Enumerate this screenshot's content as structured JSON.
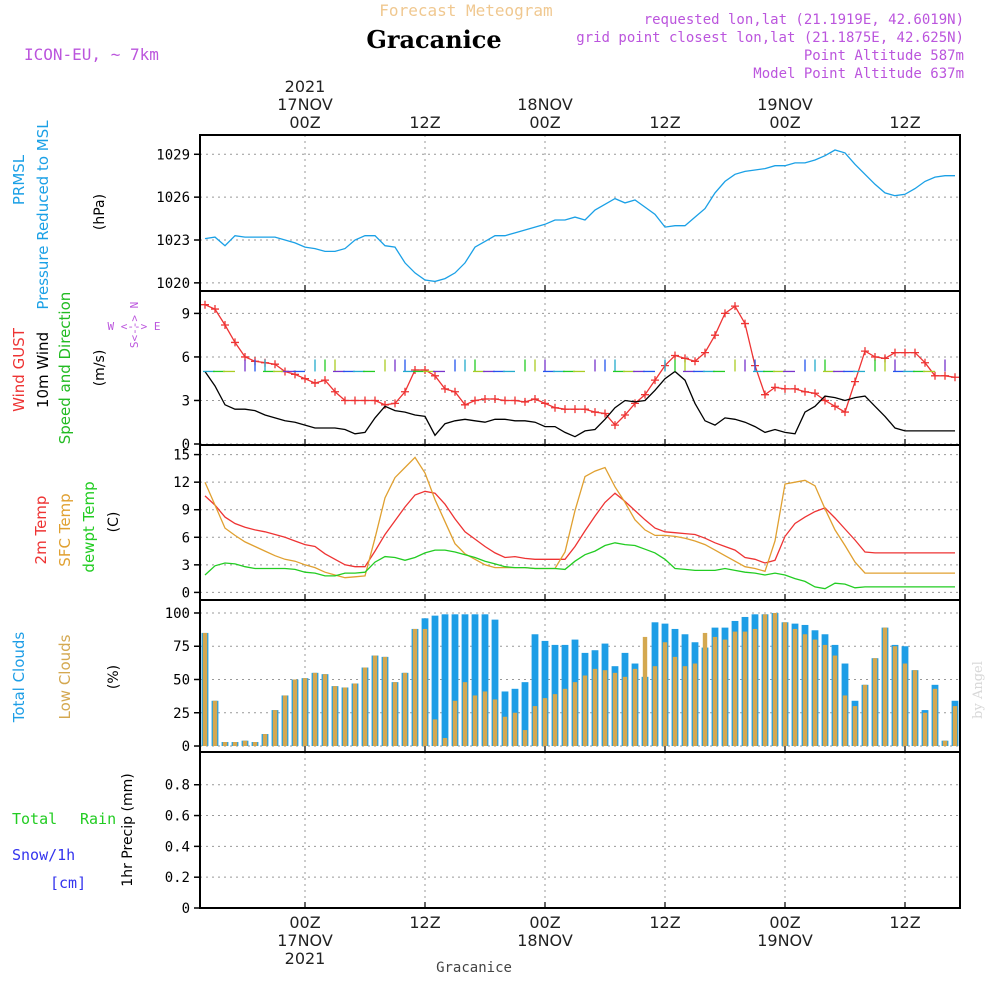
{
  "header": {
    "product": "Forecast Meteogram",
    "location": "Gracanice",
    "model": "ICON-EU, ~ 7km",
    "requested": "requested lon,lat (21.1919E, 42.6019N)",
    "gridpoint": "grid point closest lon,lat (21.1875E, 42.625N)",
    "point_alt": "Point Altitude 587m",
    "model_alt": "Model Point Altitude 637m",
    "credit": "by Angel",
    "footer_location": "Gracanice"
  },
  "colors": {
    "pressure": "#1aa0e6",
    "gust": "#ee3333",
    "wind": "#000000",
    "dir": "#22bb22",
    "temp": "#ee3333",
    "sfc": "#e0a030",
    "dew": "#22cc22",
    "total_cloud": "#1e9ee6",
    "low_cloud": "#d4a850",
    "rain": "#22cc22",
    "snow": "#3333ee",
    "purple": "#bb55dd",
    "header_gold": "#f0c890"
  },
  "time_axis": {
    "top_labels": [
      {
        "hour": 0,
        "lines": [
          "2021",
          "17NOV",
          "00Z"
        ]
      },
      {
        "hour": 12,
        "lines": [
          "12Z"
        ]
      },
      {
        "hour": 24,
        "lines": [
          "18NOV",
          "00Z"
        ]
      },
      {
        "hour": 36,
        "lines": [
          "12Z"
        ]
      },
      {
        "hour": 48,
        "lines": [
          "19NOV",
          "00Z"
        ]
      },
      {
        "hour": 60,
        "lines": [
          "12Z"
        ]
      }
    ],
    "bottom_labels": [
      {
        "hour": 0,
        "lines": [
          "00Z",
          "17NOV",
          "2021"
        ]
      },
      {
        "hour": 12,
        "lines": [
          "12Z"
        ]
      },
      {
        "hour": 24,
        "lines": [
          "00Z",
          "18NOV"
        ]
      },
      {
        "hour": 36,
        "lines": [
          "12Z"
        ]
      },
      {
        "hour": 48,
        "lines": [
          "00Z",
          "19NOV"
        ]
      },
      {
        "hour": 60,
        "lines": [
          "12Z"
        ]
      }
    ]
  },
  "panels": {
    "pressure": {
      "label1": "PRMSL",
      "label2": "Pressure Reduced to MSL",
      "unit": "(hPa)"
    },
    "wind": {
      "label_gust": "Wind GUST",
      "label_wind": "10m Wind",
      "label_dir": "Speed and Direction",
      "unit": "(m/s)",
      "compass_ns": "S<--> N",
      "compass_we": "W <--> E"
    },
    "temp": {
      "label_t": "2m Temp",
      "label_sfc": "SFC Temp",
      "label_dew": "dewpt Temp",
      "unit": "(C)"
    },
    "clouds": {
      "label_total": "Total Clouds",
      "label_low": "Low Clouds",
      "unit": "(%)"
    },
    "precip": {
      "label_rain_a": "Total",
      "label_rain_b": "Rain",
      "label_snow": "Snow/1h",
      "label_snow_unit": "[cm]",
      "unit": "1hr Precip (mm)"
    }
  },
  "chart_data": [
    {
      "type": "line",
      "title": "PRMSL Pressure Reduced to MSL",
      "ylabel": "(hPa)",
      "ylim": [
        1019.5,
        1030.0
      ],
      "yticks": [
        1020,
        1023,
        1026,
        1029
      ],
      "x_hours": [
        -10,
        -9,
        -8,
        -7,
        -6,
        -5,
        -4,
        -3,
        -2,
        -1,
        0,
        1,
        2,
        3,
        4,
        5,
        6,
        7,
        8,
        9,
        10,
        11,
        12,
        13,
        14,
        15,
        16,
        17,
        18,
        19,
        20,
        21,
        22,
        23,
        24,
        25,
        26,
        27,
        28,
        29,
        30,
        31,
        32,
        33,
        34,
        35,
        36,
        37,
        38,
        39,
        40,
        41,
        42,
        43,
        44,
        45,
        46,
        47,
        48,
        49,
        50,
        51,
        52,
        53,
        54,
        55,
        56,
        57,
        58,
        59,
        60,
        61,
        62,
        63,
        64,
        65
      ],
      "series": [
        {
          "name": "PRMSL",
          "values": [
            1023.1,
            1023.2,
            1022.6,
            1023.3,
            1023.2,
            1023.2,
            1023.2,
            1023.2,
            1023.0,
            1022.8,
            1022.5,
            1022.4,
            1022.2,
            1022.2,
            1022.4,
            1023.0,
            1023.3,
            1023.3,
            1022.6,
            1022.5,
            1021.4,
            1020.7,
            1020.2,
            1020.1,
            1020.3,
            1020.7,
            1021.4,
            1022.5,
            1022.9,
            1023.3,
            1023.3,
            1023.5,
            1023.7,
            1023.9,
            1024.1,
            1024.4,
            1024.4,
            1024.6,
            1024.4,
            1025.1,
            1025.5,
            1025.9,
            1025.6,
            1025.8,
            1025.3,
            1024.8,
            1023.9,
            1024.0,
            1024.0,
            1024.6,
            1025.2,
            1026.3,
            1027.1,
            1027.6,
            1027.8,
            1027.9,
            1028.0,
            1028.2,
            1028.2,
            1028.4,
            1028.4,
            1028.6,
            1028.9,
            1029.3,
            1029.1,
            1028.3,
            1027.6,
            1026.9,
            1026.3,
            1026.1,
            1026.2,
            1026.6,
            1027.1,
            1027.4,
            1027.5,
            1027.5
          ]
        }
      ]
    },
    {
      "type": "line",
      "title": "Wind GUST / 10m Wind Speed and Direction",
      "ylabel": "(m/s)",
      "ylim": [
        0,
        10.2
      ],
      "yticks": [
        0,
        3,
        6,
        9
      ],
      "x_hours": [
        -10,
        -9,
        -8,
        -7,
        -6,
        -5,
        -4,
        -3,
        -2,
        -1,
        0,
        1,
        2,
        3,
        4,
        5,
        6,
        7,
        8,
        9,
        10,
        11,
        12,
        13,
        14,
        15,
        16,
        17,
        18,
        19,
        20,
        21,
        22,
        23,
        24,
        25,
        26,
        27,
        28,
        29,
        30,
        31,
        32,
        33,
        34,
        35,
        36,
        37,
        38,
        39,
        40,
        41,
        42,
        43,
        44,
        45,
        46,
        47,
        48,
        49,
        50,
        51,
        52,
        53,
        54,
        55,
        56,
        57,
        58,
        59,
        60,
        61,
        62,
        63,
        64,
        65
      ],
      "series": [
        {
          "name": "Wind GUST",
          "values": [
            9.6,
            9.3,
            8.2,
            7.0,
            6.0,
            5.7,
            5.6,
            5.5,
            5.0,
            4.8,
            4.5,
            4.2,
            4.4,
            3.6,
            3.0,
            3.0,
            3.0,
            3.0,
            2.7,
            2.8,
            3.6,
            5.1,
            5.1,
            4.7,
            3.8,
            3.6,
            2.7,
            3.0,
            3.1,
            3.1,
            3.0,
            3.0,
            2.9,
            3.1,
            2.8,
            2.5,
            2.4,
            2.4,
            2.4,
            2.2,
            2.1,
            1.3,
            2.0,
            2.8,
            3.4,
            4.4,
            5.4,
            6.1,
            5.9,
            5.7,
            6.3,
            7.5,
            9.0,
            9.5,
            8.3,
            5.4,
            3.4,
            3.9,
            3.8,
            3.8,
            3.6,
            3.5,
            3.0,
            2.6,
            2.2,
            4.3,
            6.4,
            6.0,
            5.9,
            6.3,
            6.3,
            6.3,
            5.6,
            4.7,
            4.7,
            4.6
          ]
        },
        {
          "name": "10m Wind",
          "values": [
            5.0,
            4.0,
            2.7,
            2.4,
            2.4,
            2.3,
            2.0,
            1.8,
            1.6,
            1.5,
            1.3,
            1.1,
            1.1,
            1.1,
            1.0,
            0.7,
            0.8,
            1.8,
            2.6,
            2.3,
            2.2,
            2.0,
            1.9,
            0.6,
            1.4,
            1.6,
            1.7,
            1.6,
            1.5,
            1.7,
            1.7,
            1.6,
            1.6,
            1.5,
            1.2,
            1.2,
            0.8,
            0.5,
            0.9,
            1.0,
            1.7,
            2.5,
            3.0,
            2.9,
            3.0,
            3.7,
            4.5,
            5.0,
            4.4,
            2.8,
            1.6,
            1.3,
            1.8,
            1.7,
            1.5,
            1.2,
            0.8,
            1.0,
            0.8,
            0.7,
            2.2,
            2.6,
            3.3,
            3.2,
            3.0,
            3.2,
            3.3,
            2.6,
            1.9,
            1.1,
            0.9,
            0.9,
            0.9,
            0.9,
            0.9,
            0.9
          ]
        }
      ],
      "direction_arrows_start_hour": -9,
      "direction_arrows_end_hour": 64
    },
    {
      "type": "line",
      "title": "2m Temp / SFC Temp / dewpt Temp",
      "ylabel": "(C)",
      "ylim": [
        -0.5,
        15.5
      ],
      "yticks": [
        0,
        3,
        6,
        9,
        12,
        15
      ],
      "x_hours": [
        -10,
        -9,
        -8,
        -7,
        -6,
        -5,
        -4,
        -3,
        -2,
        -1,
        0,
        1,
        2,
        3,
        4,
        5,
        6,
        7,
        8,
        9,
        10,
        11,
        12,
        13,
        14,
        15,
        16,
        17,
        18,
        19,
        20,
        21,
        22,
        23,
        24,
        25,
        26,
        27,
        28,
        29,
        30,
        31,
        32,
        33,
        34,
        35,
        36,
        37,
        38,
        39,
        40,
        41,
        42,
        43,
        44,
        45,
        46,
        47,
        48,
        49,
        50,
        51,
        52,
        53,
        54,
        55,
        56,
        57,
        58,
        59,
        60,
        61,
        62,
        63,
        64,
        65
      ],
      "series": [
        {
          "name": "2m Temp",
          "values": [
            10.5,
            9.5,
            8.2,
            7.5,
            7.1,
            6.8,
            6.6,
            6.3,
            6.0,
            5.6,
            5.2,
            5.0,
            4.2,
            3.6,
            3.0,
            2.8,
            2.8,
            4.5,
            6.3,
            7.8,
            9.3,
            10.6,
            11.0,
            10.8,
            9.6,
            8.0,
            6.6,
            5.8,
            5.0,
            4.3,
            3.8,
            3.9,
            3.7,
            3.6,
            3.6,
            3.6,
            3.6,
            5.0,
            6.7,
            8.3,
            9.8,
            10.8,
            9.9,
            8.9,
            7.9,
            7.0,
            6.6,
            6.5,
            6.4,
            6.3,
            5.9,
            5.4,
            5.0,
            4.6,
            3.8,
            3.6,
            3.2,
            3.5,
            6.1,
            7.5,
            8.2,
            8.8,
            9.2,
            8.1,
            6.9,
            5.7,
            4.4,
            4.3,
            4.3,
            4.3,
            4.3,
            4.3,
            4.3,
            4.3,
            4.3,
            4.3
          ]
        },
        {
          "name": "SFC Temp",
          "values": [
            12.0,
            9.5,
            7.0,
            6.2,
            5.5,
            5.0,
            4.5,
            4.0,
            3.6,
            3.4,
            3.0,
            2.7,
            2.2,
            1.9,
            1.6,
            1.7,
            1.8,
            5.9,
            10.3,
            12.5,
            13.6,
            14.7,
            13.0,
            10.1,
            7.7,
            5.3,
            4.2,
            3.6,
            3.0,
            2.7,
            2.7,
            2.7,
            2.7,
            2.6,
            2.6,
            2.6,
            4.4,
            8.9,
            12.6,
            13.2,
            13.6,
            11.5,
            9.8,
            7.9,
            6.8,
            6.2,
            6.2,
            6.1,
            5.9,
            5.6,
            5.2,
            4.6,
            4.0,
            3.4,
            2.8,
            2.6,
            2.3,
            5.6,
            11.8,
            12.0,
            12.2,
            11.6,
            9.1,
            6.8,
            5.1,
            3.3,
            2.1,
            2.1,
            2.1,
            2.1,
            2.1,
            2.1,
            2.1,
            2.1,
            2.1,
            2.1
          ]
        },
        {
          "name": "dewpt Temp",
          "values": [
            1.9,
            2.9,
            3.2,
            3.1,
            2.8,
            2.6,
            2.6,
            2.6,
            2.6,
            2.5,
            2.2,
            2.1,
            1.8,
            1.8,
            2.1,
            2.1,
            2.2,
            3.3,
            3.9,
            3.8,
            3.5,
            3.8,
            4.3,
            4.6,
            4.6,
            4.4,
            4.1,
            3.8,
            3.4,
            3.1,
            2.8,
            2.7,
            2.7,
            2.6,
            2.6,
            2.6,
            2.5,
            3.4,
            4.1,
            4.5,
            5.1,
            5.4,
            5.2,
            5.1,
            4.7,
            4.3,
            3.6,
            2.6,
            2.5,
            2.4,
            2.4,
            2.4,
            2.6,
            2.4,
            2.2,
            2.1,
            1.9,
            2.1,
            1.9,
            1.5,
            1.2,
            0.6,
            0.4,
            1.0,
            0.9,
            0.5,
            0.6,
            0.6,
            0.6,
            0.6,
            0.6,
            0.6,
            0.6,
            0.6,
            0.6,
            0.6
          ]
        }
      ]
    },
    {
      "type": "bar",
      "title": "Total Clouds / Low Clouds",
      "ylabel": "(%)",
      "ylim": [
        -3,
        106
      ],
      "yticks": [
        0,
        25,
        50,
        75,
        100
      ],
      "x_hours": [
        -10,
        -9,
        -8,
        -7,
        -6,
        -5,
        -4,
        -3,
        -2,
        -1,
        0,
        1,
        2,
        3,
        4,
        5,
        6,
        7,
        8,
        9,
        10,
        11,
        12,
        13,
        14,
        15,
        16,
        17,
        18,
        19,
        20,
        21,
        22,
        23,
        24,
        25,
        26,
        27,
        28,
        29,
        30,
        31,
        32,
        33,
        34,
        35,
        36,
        37,
        38,
        39,
        40,
        41,
        42,
        43,
        44,
        45,
        46,
        47,
        48,
        49,
        50,
        51,
        52,
        53,
        54,
        55,
        56,
        57,
        58,
        59,
        60,
        61,
        62,
        63,
        64,
        65
      ],
      "series": [
        {
          "name": "Total Clouds",
          "values": [
            85,
            34,
            3,
            3,
            4,
            3,
            9,
            27,
            38,
            50,
            51,
            55,
            54,
            45,
            44,
            47,
            59,
            68,
            67,
            48,
            55,
            88,
            96,
            98,
            99,
            99,
            99,
            99,
            99,
            95,
            41,
            43,
            48,
            84,
            79,
            76,
            76,
            80,
            70,
            72,
            77,
            60,
            70,
            62,
            52,
            93,
            92,
            88,
            84,
            78,
            74,
            89,
            89,
            94,
            97,
            99,
            99,
            100,
            93,
            92,
            91,
            87,
            84,
            76,
            62,
            34,
            46,
            66,
            89,
            76,
            75,
            57,
            27,
            46,
            4,
            34
          ]
        },
        {
          "name": "Low Clouds",
          "values": [
            85,
            34,
            3,
            3,
            4,
            3,
            9,
            27,
            38,
            50,
            51,
            55,
            54,
            45,
            44,
            47,
            59,
            68,
            67,
            48,
            55,
            88,
            88,
            20,
            6,
            34,
            48,
            38,
            41,
            35,
            22,
            25,
            12,
            30,
            36,
            39,
            43,
            48,
            53,
            58,
            57,
            55,
            52,
            58,
            82,
            60,
            78,
            67,
            60,
            62,
            85,
            82,
            80,
            86,
            86,
            88,
            99,
            100,
            93,
            88,
            84,
            80,
            76,
            68,
            38,
            30,
            46,
            66,
            89,
            75,
            62,
            57,
            25,
            43,
            4,
            30
          ]
        }
      ]
    },
    {
      "type": "line",
      "title": "Total Rain / Snow/1h [cm]",
      "ylabel": "1hr Precip (mm)",
      "ylim": [
        0,
        0.98
      ],
      "yticks": [
        0,
        0.2,
        0.4,
        0.6,
        0.8
      ],
      "series": [
        {
          "name": "Total Rain",
          "values": []
        },
        {
          "name": "Snow/1h",
          "values": []
        }
      ]
    }
  ]
}
